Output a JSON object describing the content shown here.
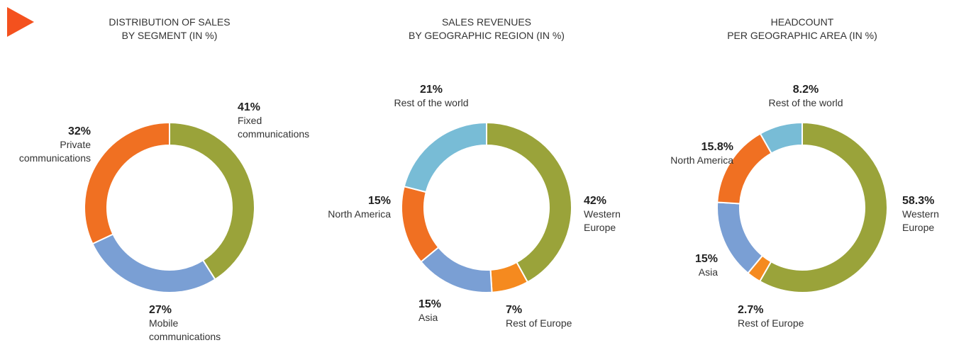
{
  "chart_data": [
    {
      "type": "donut",
      "title": [
        "DISTRIBUTION OF SALES",
        "BY SEGMENT (IN %)"
      ],
      "categories": [
        "Fixed communications",
        "Mobile communications",
        "Private communications"
      ],
      "values": [
        41,
        27,
        32
      ],
      "value_labels": [
        "41%",
        "27%",
        "32%"
      ],
      "colors": [
        "#9aa33a",
        "#7a9fd4",
        "#f07022"
      ]
    },
    {
      "type": "donut",
      "title": [
        "SALES REVENUES",
        "BY GEOGRAPHIC REGION (IN %)"
      ],
      "categories": [
        "Western Europe",
        "Rest of Europe",
        "Asia",
        "North America",
        "Rest of the world"
      ],
      "values": [
        42,
        7,
        15,
        15,
        21
      ],
      "value_labels": [
        "42%",
        "7%",
        "15%",
        "15%",
        "21%"
      ],
      "colors": [
        "#9aa33a",
        "#f58a1f",
        "#7a9fd4",
        "#f07022",
        "#78bcd6"
      ]
    },
    {
      "type": "donut",
      "title": [
        "HEADCOUNT",
        "PER GEOGRAPHIC AREA (IN %)"
      ],
      "categories": [
        "Western Europe",
        "Rest of Europe",
        "Asia",
        "North America",
        "Rest of the world"
      ],
      "values": [
        58.3,
        2.7,
        15,
        15.8,
        8.2
      ],
      "value_labels": [
        "58.3%",
        "2.7%",
        "15%",
        "15.8%",
        "8.2%"
      ],
      "colors": [
        "#9aa33a",
        "#f58a1f",
        "#7a9fd4",
        "#f07022",
        "#78bcd6"
      ]
    }
  ]
}
